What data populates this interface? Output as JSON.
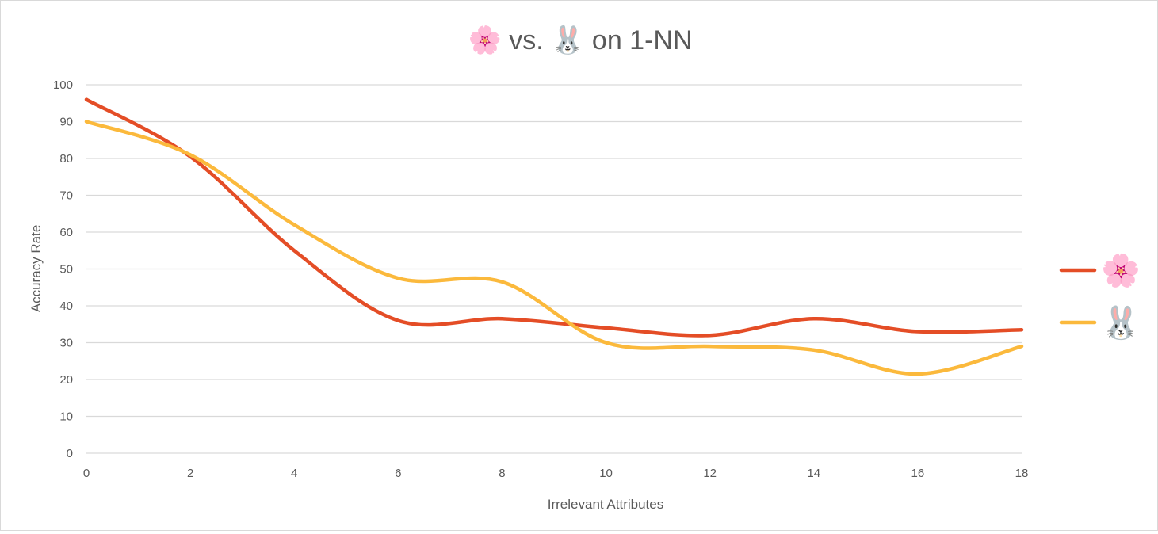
{
  "chart_data": {
    "type": "line",
    "title": "🌸 vs. 🐰 on 1-NN",
    "xlabel": "Irrelevant Attributes",
    "ylabel": "Accuracy Rate",
    "x": [
      0,
      2,
      4,
      6,
      8,
      10,
      12,
      14,
      16,
      18
    ],
    "x_ticks": [
      "0",
      "2",
      "4",
      "6",
      "8",
      "10",
      "12",
      "14",
      "16",
      "18"
    ],
    "y_ticks": [
      "0",
      "10",
      "20",
      "30",
      "40",
      "50",
      "60",
      "70",
      "80",
      "90",
      "100"
    ],
    "xlim": [
      0,
      18
    ],
    "ylim": [
      0,
      100
    ],
    "grid": "horizontal",
    "smooth": true,
    "legend": "right",
    "series": [
      {
        "name": "🌸",
        "color": "#E44D26",
        "values": [
          96,
          80.5,
          55,
          36,
          36.5,
          34,
          32,
          36.5,
          33,
          33.5
        ]
      },
      {
        "name": "🐰",
        "color": "#FBB93C",
        "values": [
          90,
          81,
          62,
          47.5,
          46.5,
          30,
          29,
          28,
          21.5,
          29
        ]
      }
    ]
  }
}
